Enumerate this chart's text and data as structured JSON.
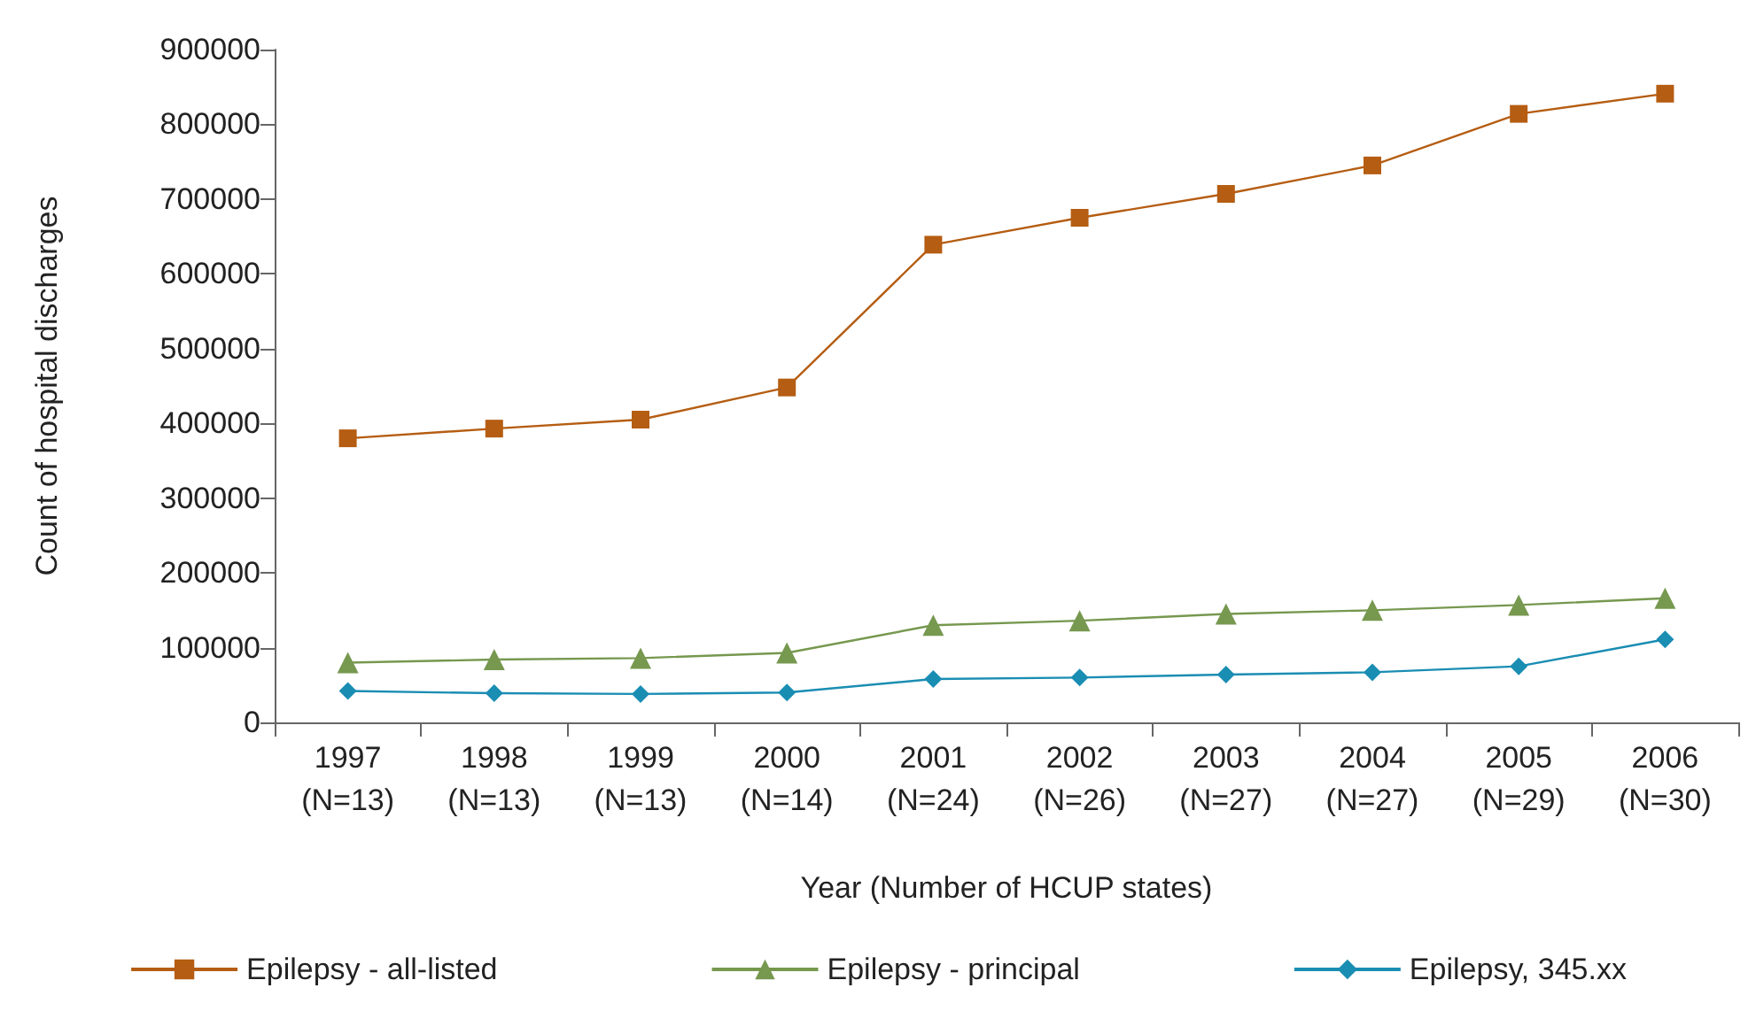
{
  "chart_data": {
    "type": "line",
    "xlabel": "Year (Number of HCUP states)",
    "ylabel": "Count of hospital discharges",
    "categories": [
      "1997\n(N=13)",
      "1998\n(N=13)",
      "1999\n(N=13)",
      "2000\n(N=14)",
      "2001\n(N=24)",
      "2002\n(N=26)",
      "2003\n(N=27)",
      "2004\n(N=27)",
      "2005\n(N=29)",
      "2006\n(N=30)"
    ],
    "series": [
      {
        "name": "Epilepsy - all-listed",
        "color": "#b55d12",
        "marker": "square",
        "values": [
          380000,
          393000,
          405000,
          448000,
          639000,
          675000,
          707000,
          745000,
          814000,
          841000
        ]
      },
      {
        "name": "Epilepsy - principal",
        "color": "#76984f",
        "marker": "triangle",
        "values": [
          80000,
          84000,
          86000,
          93000,
          130000,
          136000,
          145000,
          150000,
          157000,
          166000
        ]
      },
      {
        "name": "Epilepsy, 345.xx",
        "color": "#1a8db3",
        "marker": "diamond",
        "values": [
          42000,
          39000,
          38000,
          40000,
          58000,
          60000,
          64000,
          67000,
          75000,
          111000
        ]
      }
    ],
    "ylim": [
      0,
      900000
    ],
    "yticks": [
      0,
      100000,
      200000,
      300000,
      400000,
      500000,
      600000,
      700000,
      800000,
      900000
    ],
    "grid": false,
    "legend": "bottom",
    "line_style": "solid"
  }
}
